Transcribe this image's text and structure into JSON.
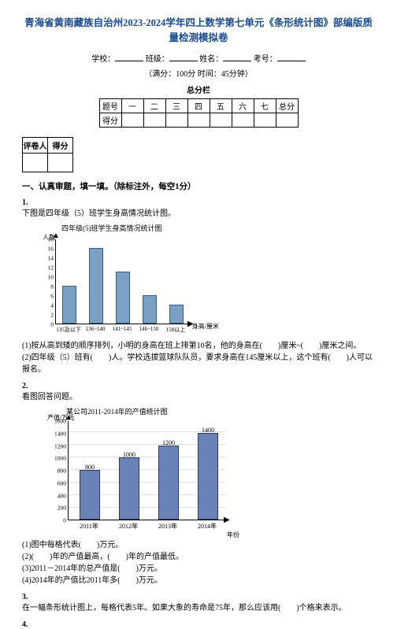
{
  "title": "青海省黄南藏族自治州2023-2024学年四上数学第七单元《条形统计图》部编版质量检测模拟卷",
  "info_labels": {
    "school": "学校：",
    "class": "班级：",
    "name": "姓名：",
    "id": "考号："
  },
  "exam_meta": "（满分：100分 时间：45分钟）",
  "total_label": "总分栏",
  "score_header": [
    "题号",
    "一",
    "二",
    "三",
    "四",
    "五",
    "六",
    "七",
    "总分"
  ],
  "score_row_label": "得分",
  "grader": {
    "col1": "评卷人",
    "col2": "得分"
  },
  "section1": "一、认真审题，填一填。（除标注外，每空1分）",
  "q1": {
    "num": "1.",
    "intro": "下图是四年级（5）班学生身高情况统计图。",
    "chart_title": "四年级(5)班学生身高情况统计图",
    "y_label": "人数",
    "x_label": "身高/厘米",
    "y_ticks": [
      0,
      2,
      4,
      6,
      8,
      10,
      12,
      14,
      16,
      18
    ],
    "categories": [
      "135及以下",
      "136~140",
      "141~145",
      "146~150",
      "150以上"
    ],
    "values": [
      8,
      16,
      11,
      6,
      4
    ],
    "bar_colors": [
      "#7aa0c4",
      "#7aa0c4",
      "#7aa0c4",
      "#7aa0c4",
      "#7aa0c4"
    ],
    "lines": [
      "(1)按从高到矮的顺序排列，小明的身高在班上排第10名，他的身高在(　　)厘米~(　　)厘米之间。",
      "(2)四年级（5）班有(　　)人。学校选拔篮球队队员，要求身高在145厘米以上，这个班有(　　)人可以报名。"
    ]
  },
  "q2": {
    "num": "2.",
    "intro": "看图回答问题。",
    "chart_title": "某公司2011-2014年的产值统计图",
    "y_label": "产值/万元",
    "x_label": "年份",
    "y_ticks": [
      0,
      200,
      400,
      600,
      800,
      1000,
      1200,
      1400,
      1600
    ],
    "categories": [
      "2011年",
      "2012年",
      "2013年",
      "2014年"
    ],
    "values": [
      800,
      1000,
      1200,
      1400
    ],
    "labels_shown": [
      "800",
      "1000",
      "1200",
      "1400"
    ],
    "bar_colors": [
      "#6a82b5",
      "#6a82b5",
      "#6a82b5",
      "#6a82b5"
    ],
    "lines": [
      "(1)图中每格代表(　　)万元。",
      "(2)(　　)年的产值最高，(　　)年的产值最低。",
      "(3)2011－2014年的总产值是(　　)万元。",
      "(4)2014年的产值比2011年多(　　)万元。"
    ]
  },
  "q3": {
    "num": "3.",
    "text": "在一幅条形统计图上，每格代表5年。如果大象的寿命是75年，那么应该用(　　)个格来表示。"
  },
  "q4": {
    "num": "4."
  }
}
